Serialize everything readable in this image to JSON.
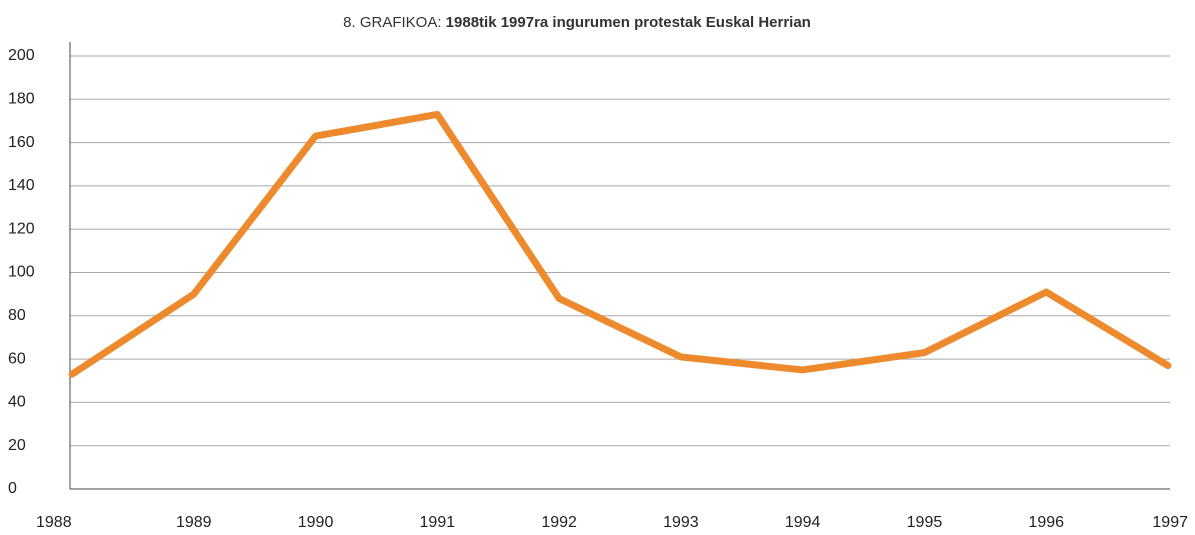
{
  "chart_data": {
    "type": "line",
    "title_label": "8. GRAFIKOA:",
    "title": "1988tik 1997ra ingurumen protestak Euskal Herrian",
    "categories": [
      "1988",
      "1989",
      "1990",
      "1991",
      "1992",
      "1993",
      "1994",
      "1995",
      "1996",
      "1997"
    ],
    "series": [
      {
        "name": "Ingurumen protestak",
        "color": "#ee8a2e",
        "values": [
          53,
          90,
          163,
          173,
          88,
          61,
          55,
          63,
          91,
          57
        ]
      }
    ],
    "ylim": [
      0,
      200
    ],
    "yticks": [
      0,
      20,
      40,
      60,
      80,
      100,
      120,
      140,
      160,
      180,
      200
    ],
    "grid": true
  }
}
